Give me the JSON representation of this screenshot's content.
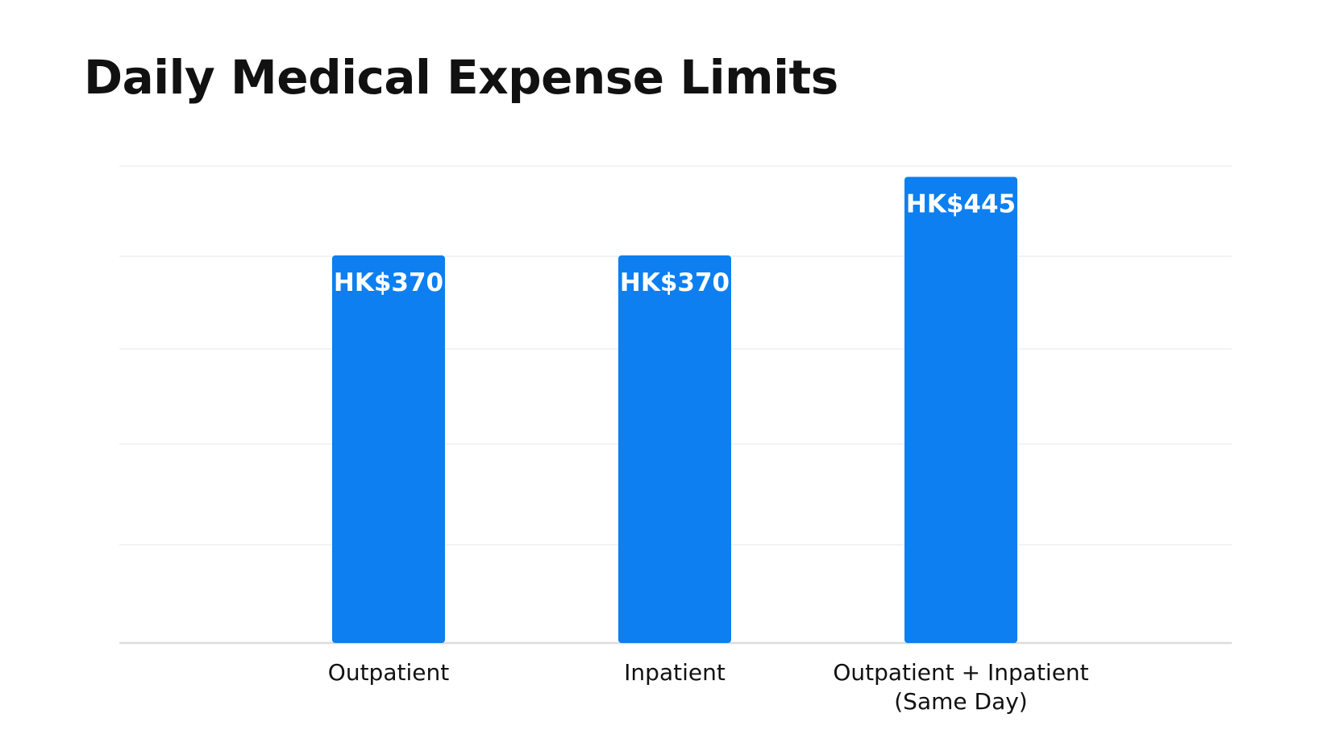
{
  "chart_data": {
    "type": "bar",
    "title": "Daily Medical Expense Limits",
    "xlabel": "",
    "ylabel": "",
    "categories": [
      [
        "Outpatient"
      ],
      [
        "Inpatient"
      ],
      [
        "Outpatient + Inpatient",
        "(Same Day)"
      ]
    ],
    "values": [
      370,
      370,
      445
    ],
    "data_labels": [
      "HK$370",
      "HK$370",
      "HK$445"
    ],
    "ylim": [
      0,
      460
    ],
    "grid": true,
    "bar_color": "#0d7ff0"
  }
}
